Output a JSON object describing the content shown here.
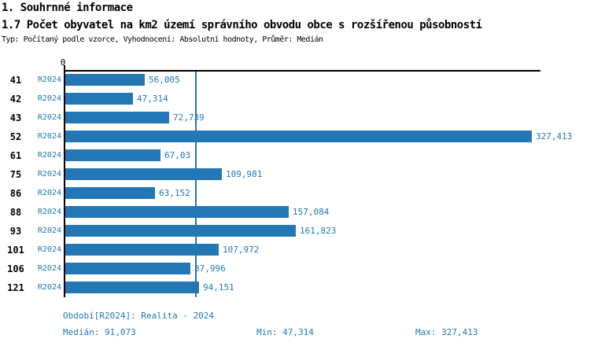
{
  "page": {
    "title_line1": "1. Souhrnné informace",
    "title_line2": "1.7 Počet obyvatel na km2 území správního obvodu obce s rozšířenou působností",
    "subtitle": "Typ: Počítaný podle vzorce, Vyhodnocení: Absolutní hodnoty, Průměr: Medián"
  },
  "chart_data": {
    "type": "bar",
    "orientation": "horizontal",
    "title": "1.7 Počet obyvatel na km2 území správního obvodu obce s rozšířenou působností",
    "categories": [
      "41",
      "42",
      "43",
      "52",
      "61",
      "75",
      "86",
      "88",
      "93",
      "101",
      "106",
      "121"
    ],
    "series": [
      {
        "name": "R2024",
        "values": [
          56.005,
          47.314,
          72.739,
          327.413,
          67.03,
          109.981,
          63.152,
          157.084,
          161.823,
          107.972,
          87.996,
          94.151
        ],
        "value_labels": [
          "56,005",
          "47,314",
          "72,739",
          "327,413",
          "67,03",
          "109,981",
          "63,152",
          "157,084",
          "161,823",
          "107,972",
          "87,996",
          "94,151"
        ]
      }
    ],
    "origin_tick": "0",
    "xlim": [
      0,
      340
    ],
    "grid": false,
    "legend_position": "none",
    "median_line_value": 91.073,
    "bar_color": "#2377B4",
    "median_line_color": "#2377B4",
    "stats": {
      "median": 91.073,
      "min": 47.314,
      "max": 327.413
    }
  },
  "footer": {
    "period": "Období[R2024]: Realita - 2024",
    "median": "Medián: 91,073",
    "min": "Min: 47,314",
    "max": "Max: 327,413"
  }
}
